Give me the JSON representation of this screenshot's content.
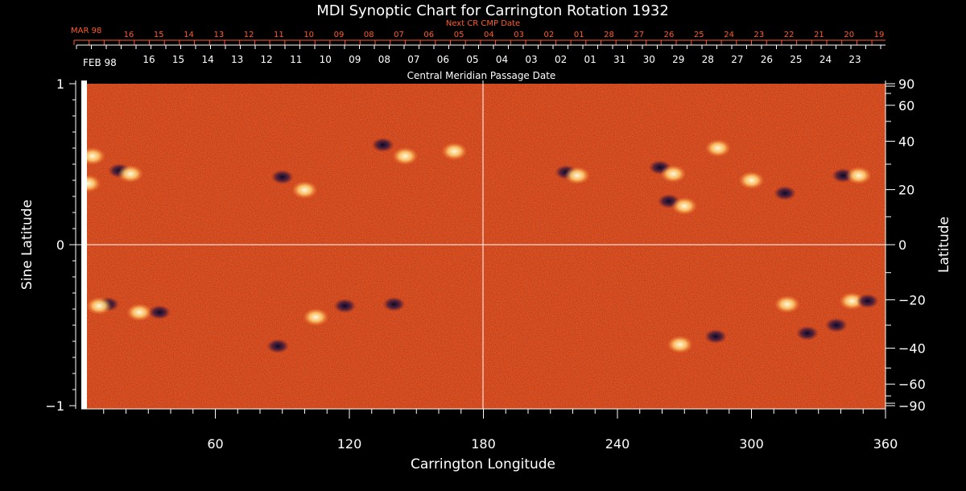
{
  "chart_data": {
    "type": "heatmap",
    "title": "MDI Synoptic Chart for Carrington Rotation 1932",
    "xlabel": "Carrington Longitude",
    "ylabel_left": "Sine Latitude",
    "ylabel_right": "Latitude",
    "top_red_axis_label": "Next CR CMP Date",
    "top_white_axis_label": "Central Meridian Passage Date",
    "x_range": [
      0,
      360
    ],
    "y_range": [
      -1,
      1
    ],
    "x_tick_labels": [
      "60",
      "120",
      "180",
      "240",
      "300",
      "360"
    ],
    "x_tick_values": [
      60,
      120,
      180,
      240,
      300,
      360
    ],
    "left_tick_labels": [
      "1",
      "0",
      "−1"
    ],
    "left_tick_values": [
      1,
      0,
      -1
    ],
    "right_tick_labels": [
      "90",
      "60",
      "40",
      "20",
      "0",
      "−20",
      "−40",
      "−60",
      "−90"
    ],
    "right_tick_values": [
      90,
      60,
      40,
      20,
      0,
      -20,
      -40,
      -60,
      -90
    ],
    "red_month_label": "MAR 98",
    "red_dates": [
      "16",
      "15",
      "14",
      "13",
      "12",
      "11",
      "10",
      "09",
      "08",
      "07",
      "06",
      "05",
      "04",
      "03",
      "02",
      "01",
      "28",
      "27",
      "26",
      "25",
      "24",
      "23",
      "22",
      "21",
      "20",
      "19"
    ],
    "white_month_label": "FEB 98",
    "white_dates": [
      "16",
      "15",
      "14",
      "13",
      "12",
      "11",
      "10",
      "09",
      "08",
      "07",
      "06",
      "05",
      "04",
      "03",
      "02",
      "01",
      "31",
      "30",
      "29",
      "28",
      "27",
      "26",
      "25",
      "24",
      "23"
    ],
    "grid_lines": {
      "longitude": 180,
      "sine_latitude": 0
    },
    "magnetic_regions": [
      {
        "lon": 5,
        "sinlat": 0.55,
        "polarity": "positive"
      },
      {
        "lon": 3,
        "sinlat": 0.38,
        "polarity": "positive"
      },
      {
        "lon": 17,
        "sinlat": 0.46,
        "polarity": "negative"
      },
      {
        "lon": 22,
        "sinlat": 0.44,
        "polarity": "positive"
      },
      {
        "lon": 90,
        "sinlat": 0.42,
        "polarity": "negative"
      },
      {
        "lon": 100,
        "sinlat": 0.34,
        "polarity": "positive"
      },
      {
        "lon": 135,
        "sinlat": 0.62,
        "polarity": "negative"
      },
      {
        "lon": 145,
        "sinlat": 0.55,
        "polarity": "positive"
      },
      {
        "lon": 167,
        "sinlat": 0.58,
        "polarity": "positive"
      },
      {
        "lon": 217,
        "sinlat": 0.45,
        "polarity": "negative"
      },
      {
        "lon": 222,
        "sinlat": 0.43,
        "polarity": "positive"
      },
      {
        "lon": 259,
        "sinlat": 0.48,
        "polarity": "negative"
      },
      {
        "lon": 265,
        "sinlat": 0.44,
        "polarity": "positive"
      },
      {
        "lon": 263,
        "sinlat": 0.27,
        "polarity": "negative"
      },
      {
        "lon": 270,
        "sinlat": 0.24,
        "polarity": "positive"
      },
      {
        "lon": 285,
        "sinlat": 0.6,
        "polarity": "positive"
      },
      {
        "lon": 300,
        "sinlat": 0.4,
        "polarity": "positive"
      },
      {
        "lon": 315,
        "sinlat": 0.32,
        "polarity": "negative"
      },
      {
        "lon": 341,
        "sinlat": 0.43,
        "polarity": "negative"
      },
      {
        "lon": 348,
        "sinlat": 0.43,
        "polarity": "positive"
      },
      {
        "lon": 12,
        "sinlat": -0.37,
        "polarity": "negative"
      },
      {
        "lon": 8,
        "sinlat": -0.38,
        "polarity": "positive"
      },
      {
        "lon": 26,
        "sinlat": -0.42,
        "polarity": "positive"
      },
      {
        "lon": 35,
        "sinlat": -0.42,
        "polarity": "negative"
      },
      {
        "lon": 105,
        "sinlat": -0.45,
        "polarity": "positive"
      },
      {
        "lon": 118,
        "sinlat": -0.38,
        "polarity": "negative"
      },
      {
        "lon": 140,
        "sinlat": -0.37,
        "polarity": "negative"
      },
      {
        "lon": 88,
        "sinlat": -0.63,
        "polarity": "negative"
      },
      {
        "lon": 268,
        "sinlat": -0.62,
        "polarity": "positive"
      },
      {
        "lon": 284,
        "sinlat": -0.57,
        "polarity": "negative"
      },
      {
        "lon": 316,
        "sinlat": -0.37,
        "polarity": "positive"
      },
      {
        "lon": 345,
        "sinlat": -0.35,
        "polarity": "positive"
      },
      {
        "lon": 352,
        "sinlat": -0.35,
        "polarity": "negative"
      },
      {
        "lon": 338,
        "sinlat": -0.5,
        "polarity": "negative"
      },
      {
        "lon": 325,
        "sinlat": -0.55,
        "polarity": "negative"
      }
    ]
  },
  "colors": {
    "background": "#000000",
    "field_base": "#e8501e",
    "positive": "#fff2b0",
    "negative": "#1a1440",
    "red_text": "#ff5a2a",
    "white": "#ffffff"
  }
}
